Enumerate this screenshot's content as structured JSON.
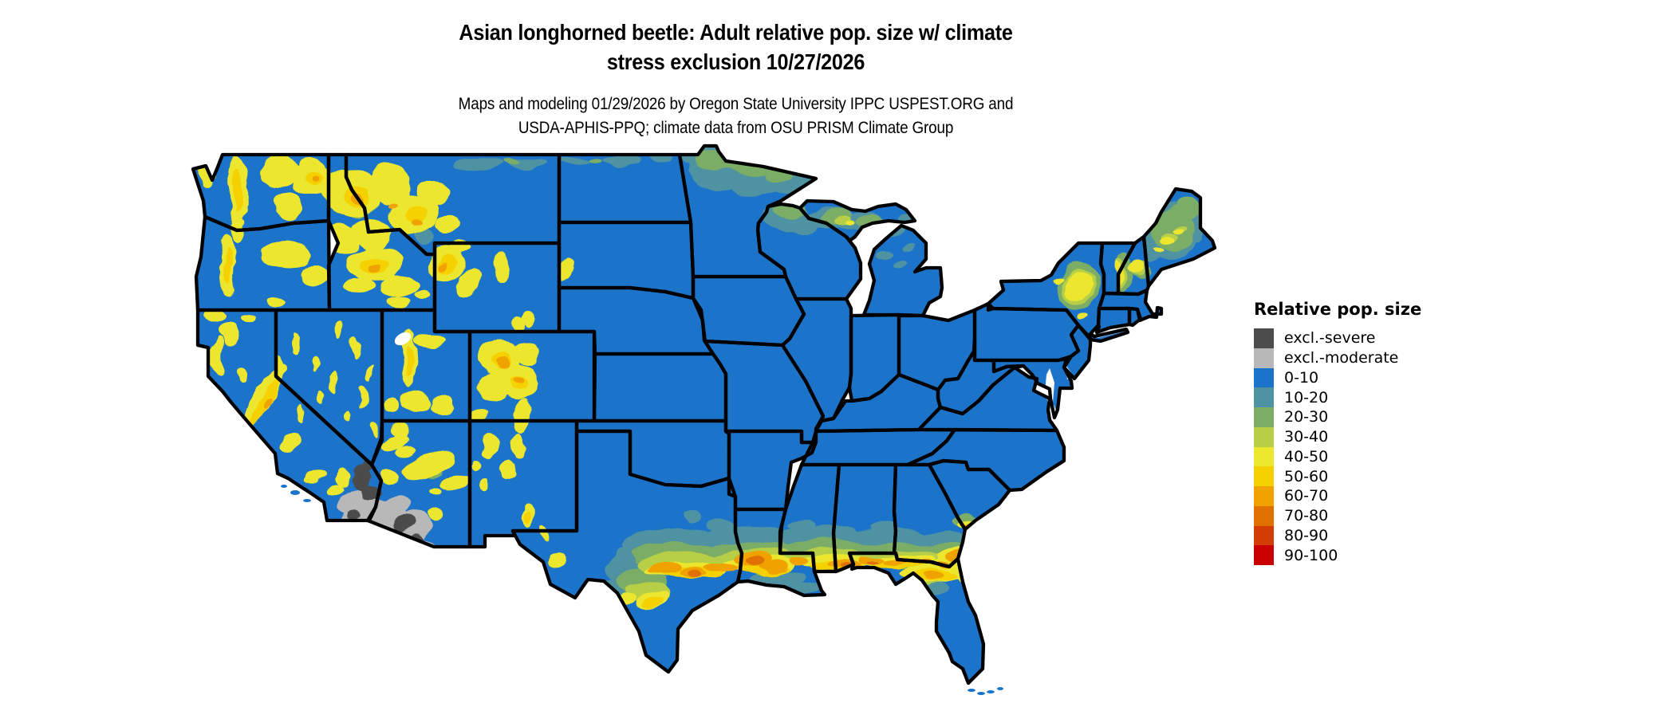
{
  "title": {
    "line1": "Asian longhorned beetle: Adult relative pop. size w/ climate",
    "line2": "stress exclusion 10/27/2026"
  },
  "subtitle": {
    "line1": "Maps and modeling 01/29/2026 by Oregon State University IPPC USPEST.ORG and",
    "line2": "USDA-APHIS-PPQ; climate data from OSU PRISM Climate Group"
  },
  "legend": {
    "title": "Relative pop. size",
    "entries": [
      {
        "label": "excl.-severe",
        "color": "#4c4c4c"
      },
      {
        "label": "excl.-moderate",
        "color": "#b8b8b8"
      },
      {
        "label": "0-10",
        "color": "#1b74c9"
      },
      {
        "label": "10-20",
        "color": "#4f93a2"
      },
      {
        "label": "20-30",
        "color": "#7bad66"
      },
      {
        "label": "30-40",
        "color": "#b7cf46"
      },
      {
        "label": "40-50",
        "color": "#ece72f"
      },
      {
        "label": "50-60",
        "color": "#f6d100"
      },
      {
        "label": "60-70",
        "color": "#f0a202"
      },
      {
        "label": "70-80",
        "color": "#e07000"
      },
      {
        "label": "80-90",
        "color": "#d13d02"
      },
      {
        "label": "90-100",
        "color": "#c80000"
      }
    ]
  },
  "map": {
    "region": "Contiguous United States",
    "base_fill": "#1b74c9",
    "border_color": "#000000",
    "background": "#ffffff"
  }
}
